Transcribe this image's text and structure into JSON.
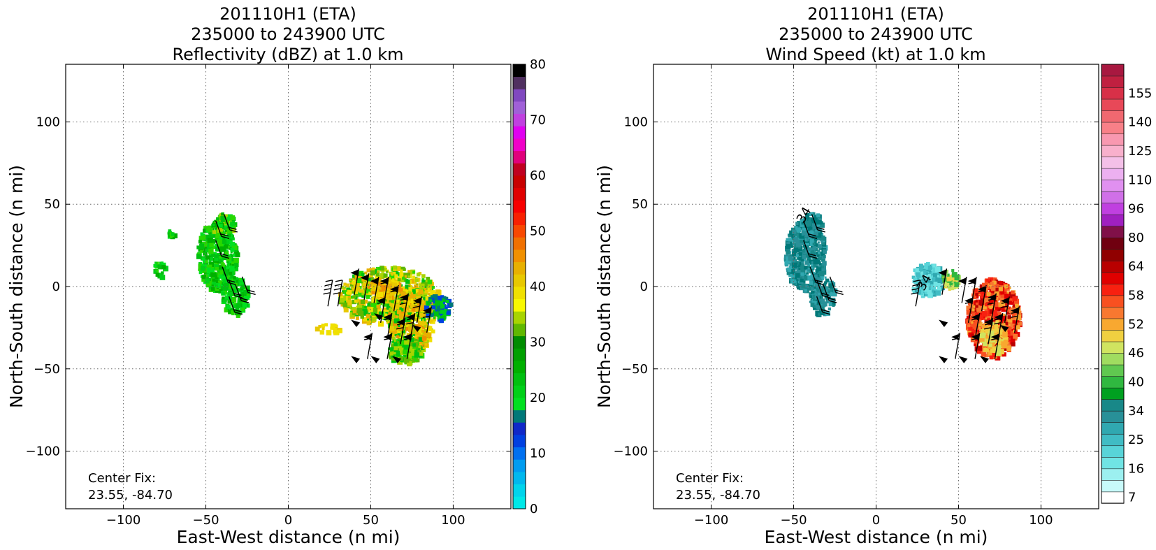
{
  "chart_data": [
    {
      "type": "heatmap",
      "title_lines": [
        "201110H1 (ETA)",
        "235000 to 243900 UTC",
        "Reflectivity (dBZ) at 1.0 km"
      ],
      "xlabel": "East-West distance (n mi)",
      "ylabel": "North-South distance (n mi)",
      "xlim": [
        -135,
        135
      ],
      "ylim": [
        -135,
        135
      ],
      "xticks": [
        -100,
        -50,
        0,
        50,
        100
      ],
      "yticks": [
        -100,
        -50,
        0,
        50,
        100
      ],
      "grid": true,
      "annotation": [
        "Center Fix:",
        "23.55, -84.70"
      ],
      "colorbar": {
        "label_values": [
          "0",
          "10",
          "20",
          "30",
          "40",
          "50",
          "60",
          "70",
          "80"
        ],
        "range": [
          0,
          80
        ],
        "colors": [
          "#00e8e8",
          "#00d4ec",
          "#00b8ee",
          "#009cf0",
          "#0070f0",
          "#0040e0",
          "#1028c8",
          "#007878",
          "#00e020",
          "#00d018",
          "#00c010",
          "#00b000",
          "#00a000",
          "#008c00",
          "#60b800",
          "#a8d400",
          "#f8f800",
          "#f0e000",
          "#e8c800",
          "#e8b000",
          "#f09000",
          "#f07000",
          "#f84800",
          "#f82000",
          "#f80000",
          "#e00000",
          "#c80000",
          "#c00020",
          "#e0007c",
          "#f000c8",
          "#e000f0",
          "#c040e0",
          "#a060d8",
          "#8048c0",
          "#503060",
          "#000000"
        ]
      },
      "features": {
        "wind_barbs": true
      }
    },
    {
      "type": "heatmap",
      "title_lines": [
        "201110H1 (ETA)",
        "235000 to 243900 UTC",
        "Wind Speed (kt) at 1.0 km"
      ],
      "xlabel": "East-West distance (n mi)",
      "ylabel": "North-South distance (n mi)",
      "xlim": [
        -135,
        135
      ],
      "ylim": [
        -135,
        135
      ],
      "xticks": [
        -100,
        -50,
        0,
        50,
        100
      ],
      "yticks": [
        -100,
        -50,
        0,
        50,
        100
      ],
      "grid": true,
      "annotation": [
        "Center Fix:",
        "23.55, -84.70"
      ],
      "contour_labels": [
        "34",
        "34"
      ],
      "colorbar": {
        "label_values": [
          "7",
          "16",
          "25",
          "34",
          "40",
          "46",
          "52",
          "58",
          "64",
          "80",
          "96",
          "110",
          "125",
          "140",
          "155"
        ],
        "colors": [
          "#ffffff",
          "#c8fafa",
          "#9cf0f0",
          "#70e4e4",
          "#58d4d8",
          "#40bcc4",
          "#30a8b0",
          "#289098",
          "#188888",
          "#00a020",
          "#30b840",
          "#60c850",
          "#a0dc60",
          "#d0e460",
          "#f0d040",
          "#f8a830",
          "#f87830",
          "#f85020",
          "#f82010",
          "#e00000",
          "#b80000",
          "#900000",
          "#700010",
          "#801048",
          "#a020c0",
          "#c040e0",
          "#d070e8",
          "#e090f0",
          "#ecb0f0",
          "#f4c0e8",
          "#f8b0cc",
          "#f898b0",
          "#f88088",
          "#f06870",
          "#e84858",
          "#d83048",
          "#c02040",
          "#a81840"
        ]
      },
      "features": {
        "wind_barbs": true
      }
    }
  ]
}
